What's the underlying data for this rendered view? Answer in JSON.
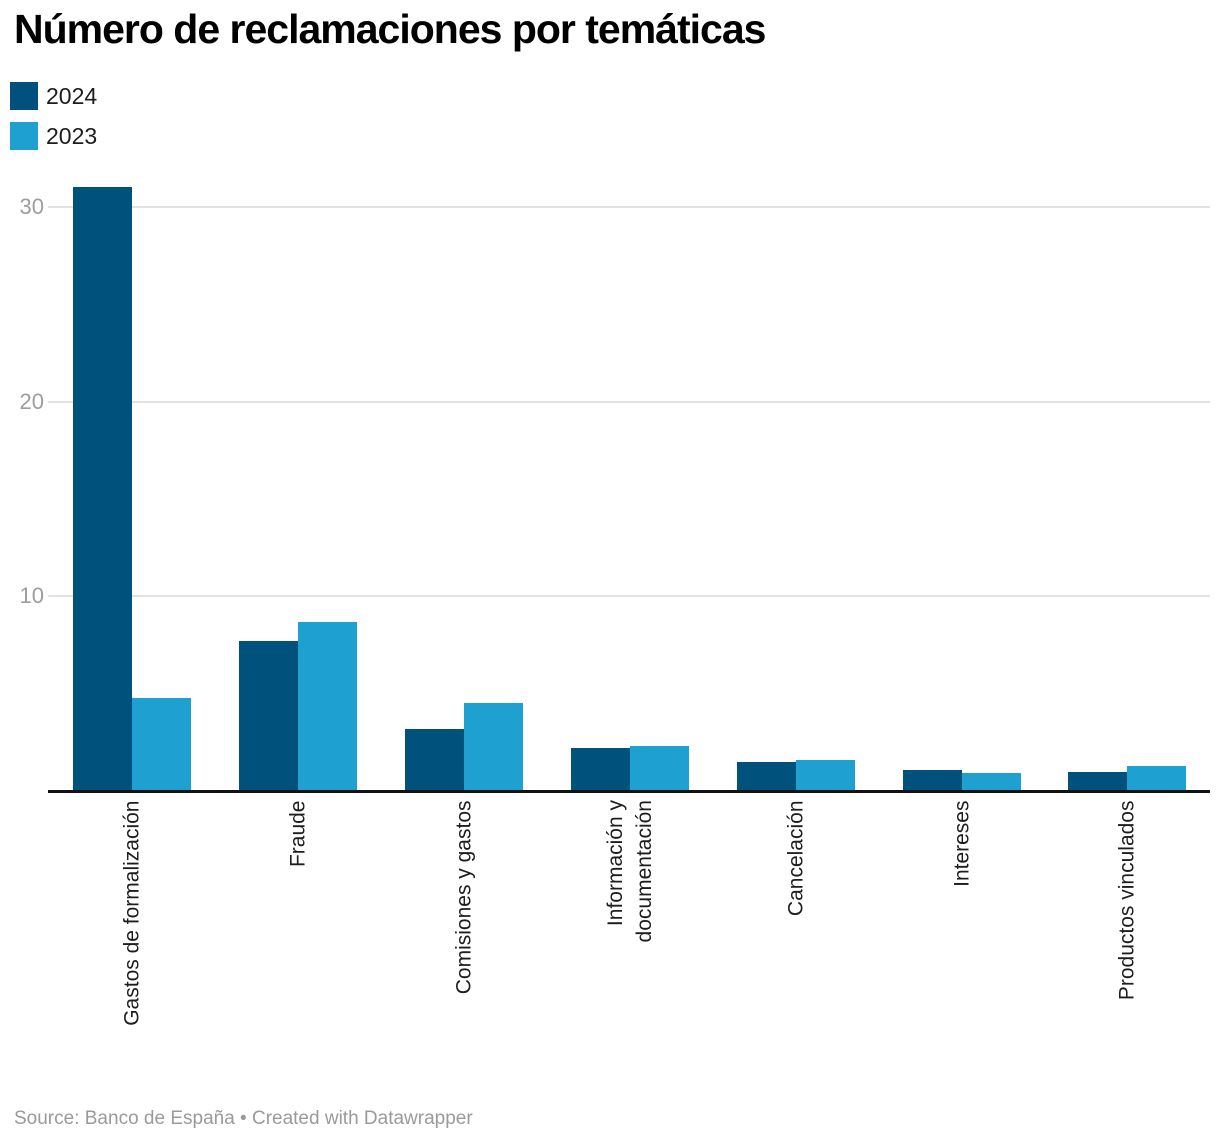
{
  "title": "Número de reclamaciones por temáticas",
  "legend": {
    "items": [
      {
        "label": "2024",
        "color": "#00517B"
      },
      {
        "label": "2023",
        "color": "#1EA1D1"
      }
    ]
  },
  "footer": {
    "source": "Source: Banco de España • Created with Datawrapper"
  },
  "chart_data": {
    "type": "bar",
    "title": "Número de reclamaciones por temáticas",
    "categories": [
      "Gastos de formalización",
      "Fraude",
      "Comisiones y gastos",
      "Información y\ndocumentación",
      "Cancelación",
      "Intereses",
      "Productos vinculados"
    ],
    "series": [
      {
        "name": "2024",
        "color": "#00517B",
        "values": [
          31,
          7.7,
          3.2,
          2.2,
          1.5,
          1.1,
          1.0
        ]
      },
      {
        "name": "2023",
        "color": "#1EA1D1",
        "values": [
          4.8,
          8.7,
          4.5,
          2.3,
          1.6,
          0.9,
          1.3
        ]
      }
    ],
    "xlabel": "",
    "ylabel": "",
    "y_ticks": [
      10,
      20,
      30
    ],
    "ylim": [
      0,
      31
    ],
    "grid": true,
    "legend_position": "top-left",
    "source": "Source: Banco de España • Created with Datawrapper"
  }
}
